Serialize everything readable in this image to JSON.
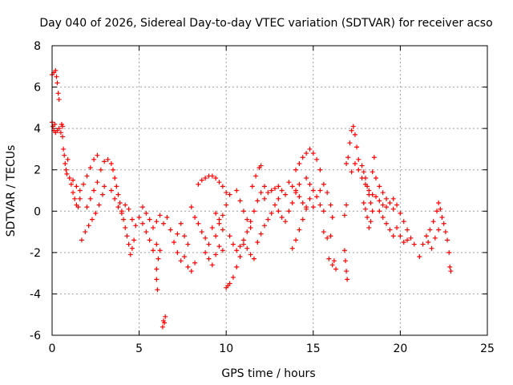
{
  "chart_data": {
    "type": "scatter",
    "title": "Day 040 of 2026, Sidereal Day-to-day VTEC variation (SDTVAR) for receiver acso",
    "xlabel": "GPS time / hours",
    "ylabel": "SDTVAR / TECUs",
    "xlim": [
      0,
      25
    ],
    "ylim": [
      -6,
      8
    ],
    "xticks": [
      0,
      5,
      10,
      15,
      20,
      25
    ],
    "yticks": [
      -6,
      -4,
      -2,
      0,
      2,
      4,
      6,
      8
    ],
    "grid": true,
    "marker": "+",
    "color": "#ff0000",
    "series": [
      {
        "name": "SDTVAR",
        "points": [
          [
            0.0,
            6.6
          ],
          [
            0.1,
            6.7
          ],
          [
            0.2,
            6.8
          ],
          [
            0.25,
            6.5
          ],
          [
            0.3,
            6.2
          ],
          [
            0.35,
            5.7
          ],
          [
            0.4,
            5.4
          ],
          [
            0.0,
            4.3
          ],
          [
            0.05,
            4.1
          ],
          [
            0.1,
            3.9
          ],
          [
            0.15,
            4.2
          ],
          [
            0.2,
            3.8
          ],
          [
            0.3,
            3.9
          ],
          [
            0.4,
            4.0
          ],
          [
            0.5,
            3.8
          ],
          [
            0.6,
            4.1
          ],
          [
            0.55,
            4.2
          ],
          [
            0.6,
            3.6
          ],
          [
            0.65,
            3.0
          ],
          [
            0.7,
            2.7
          ],
          [
            0.75,
            2.3
          ],
          [
            0.8,
            2.0
          ],
          [
            0.85,
            1.8
          ],
          [
            0.9,
            2.5
          ],
          [
            1.0,
            1.6
          ],
          [
            1.1,
            1.3
          ],
          [
            1.2,
            0.9
          ],
          [
            1.3,
            0.6
          ],
          [
            1.4,
            0.3
          ],
          [
            1.5,
            0.2
          ],
          [
            1.6,
            0.6
          ],
          [
            1.2,
            1.5
          ],
          [
            1.4,
            1.2
          ],
          [
            1.6,
            1.0
          ],
          [
            1.8,
            1.3
          ],
          [
            2.0,
            1.7
          ],
          [
            2.2,
            2.1
          ],
          [
            2.4,
            2.5
          ],
          [
            2.6,
            2.7
          ],
          [
            1.7,
            -1.4
          ],
          [
            1.9,
            -1.0
          ],
          [
            2.1,
            -0.7
          ],
          [
            2.3,
            -0.4
          ],
          [
            2.5,
            -0.1
          ],
          [
            2.7,
            0.3
          ],
          [
            2.9,
            0.8
          ],
          [
            3.0,
            1.2
          ],
          [
            2.0,
            0.2
          ],
          [
            2.2,
            0.6
          ],
          [
            2.4,
            1.0
          ],
          [
            2.6,
            1.4
          ],
          [
            2.8,
            2.0
          ],
          [
            3.0,
            2.4
          ],
          [
            3.2,
            2.5
          ],
          [
            3.4,
            2.3
          ],
          [
            3.5,
            2.0
          ],
          [
            3.6,
            1.6
          ],
          [
            3.7,
            1.2
          ],
          [
            3.8,
            0.8
          ],
          [
            3.9,
            0.4
          ],
          [
            4.0,
            0.0
          ],
          [
            4.1,
            -0.4
          ],
          [
            4.2,
            -0.8
          ],
          [
            4.3,
            -1.2
          ],
          [
            4.4,
            -1.6
          ],
          [
            4.5,
            -2.1
          ],
          [
            4.6,
            -1.8
          ],
          [
            4.7,
            -1.4
          ],
          [
            3.4,
            1.0
          ],
          [
            3.6,
            0.6
          ],
          [
            3.8,
            0.2
          ],
          [
            4.0,
            -0.1
          ],
          [
            4.2,
            0.3
          ],
          [
            4.4,
            0.1
          ],
          [
            4.6,
            -0.4
          ],
          [
            4.8,
            -0.7
          ],
          [
            5.0,
            -0.3
          ],
          [
            5.2,
            -0.6
          ],
          [
            5.4,
            -1.0
          ],
          [
            5.6,
            -1.4
          ],
          [
            5.8,
            -1.9
          ],
          [
            6.0,
            -1.6
          ],
          [
            5.2,
            0.2
          ],
          [
            5.4,
            -0.1
          ],
          [
            5.6,
            -0.4
          ],
          [
            5.8,
            -0.8
          ],
          [
            6.0,
            -0.5
          ],
          [
            6.2,
            -0.2
          ],
          [
            6.4,
            -0.6
          ],
          [
            6.0,
            -2.8
          ],
          [
            6.0,
            -3.3
          ],
          [
            6.05,
            -3.8
          ],
          [
            6.1,
            -2.3
          ],
          [
            6.2,
            -1.9
          ],
          [
            6.35,
            -5.6
          ],
          [
            6.4,
            -5.3
          ],
          [
            6.5,
            -5.1
          ],
          [
            6.45,
            -5.4
          ],
          [
            6.6,
            -0.3
          ],
          [
            6.8,
            -0.9
          ],
          [
            7.0,
            -1.5
          ],
          [
            7.2,
            -1.1
          ],
          [
            7.4,
            -0.6
          ],
          [
            7.6,
            -1.2
          ],
          [
            7.8,
            -1.6
          ],
          [
            7.2,
            -2.0
          ],
          [
            7.4,
            -2.4
          ],
          [
            7.6,
            -2.2
          ],
          [
            7.8,
            -2.7
          ],
          [
            8.0,
            -2.9
          ],
          [
            8.2,
            -2.5
          ],
          [
            8.0,
            0.2
          ],
          [
            8.2,
            -0.3
          ],
          [
            8.4,
            -0.6
          ],
          [
            8.6,
            -1.0
          ],
          [
            8.8,
            -1.3
          ],
          [
            9.0,
            -1.6
          ],
          [
            8.4,
            1.3
          ],
          [
            8.6,
            1.5
          ],
          [
            8.8,
            1.6
          ],
          [
            9.0,
            1.7
          ],
          [
            9.2,
            1.7
          ],
          [
            9.4,
            1.6
          ],
          [
            9.6,
            1.4
          ],
          [
            9.8,
            1.2
          ],
          [
            10.0,
            0.9
          ],
          [
            8.8,
            -2.0
          ],
          [
            9.0,
            -2.3
          ],
          [
            9.2,
            -2.6
          ],
          [
            9.4,
            -2.1
          ],
          [
            9.6,
            -1.7
          ],
          [
            9.8,
            -1.9
          ],
          [
            9.2,
            -0.8
          ],
          [
            9.4,
            -1.2
          ],
          [
            9.6,
            -0.6
          ],
          [
            9.8,
            -0.2
          ],
          [
            10.0,
            0.3
          ],
          [
            10.2,
            0.8
          ],
          [
            9.4,
            -0.1
          ],
          [
            9.6,
            -0.4
          ],
          [
            9.8,
            -0.9
          ],
          [
            10.0,
            -3.7
          ],
          [
            10.1,
            -3.6
          ],
          [
            10.2,
            -3.5
          ],
          [
            10.4,
            -3.2
          ],
          [
            10.6,
            -2.7
          ],
          [
            10.8,
            -2.2
          ],
          [
            11.0,
            -1.6
          ],
          [
            11.2,
            -1.0
          ],
          [
            11.4,
            -0.5
          ],
          [
            11.6,
            0.0
          ],
          [
            11.8,
            0.5
          ],
          [
            12.0,
            0.9
          ],
          [
            12.2,
            1.2
          ],
          [
            10.2,
            -1.2
          ],
          [
            10.4,
            -1.6
          ],
          [
            10.6,
            -1.9
          ],
          [
            10.8,
            -1.7
          ],
          [
            11.0,
            -1.4
          ],
          [
            11.2,
            -1.8
          ],
          [
            11.4,
            -2.1
          ],
          [
            11.6,
            -2.3
          ],
          [
            10.6,
            1.0
          ],
          [
            10.8,
            0.5
          ],
          [
            11.0,
            0.0
          ],
          [
            11.2,
            -0.4
          ],
          [
            11.4,
            -0.8
          ],
          [
            11.5,
            1.2
          ],
          [
            11.7,
            1.7
          ],
          [
            11.9,
            2.1
          ],
          [
            12.0,
            2.2
          ],
          [
            11.8,
            -1.5
          ],
          [
            12.0,
            -1.1
          ],
          [
            12.2,
            -0.7
          ],
          [
            12.4,
            -0.4
          ],
          [
            12.6,
            -0.1
          ],
          [
            12.8,
            0.3
          ],
          [
            13.0,
            0.6
          ],
          [
            12.2,
            0.6
          ],
          [
            12.4,
            0.9
          ],
          [
            12.6,
            1.0
          ],
          [
            12.8,
            1.1
          ],
          [
            13.0,
            1.2
          ],
          [
            13.2,
            1.0
          ],
          [
            13.4,
            0.8
          ],
          [
            13.0,
            0.0
          ],
          [
            13.2,
            -0.3
          ],
          [
            13.4,
            -0.5
          ],
          [
            13.6,
            0.0
          ],
          [
            13.8,
            0.4
          ],
          [
            14.0,
            0.9
          ],
          [
            14.2,
            1.3
          ],
          [
            13.6,
            1.4
          ],
          [
            13.8,
            1.2
          ],
          [
            14.0,
            1.0
          ],
          [
            14.2,
            0.7
          ],
          [
            14.4,
            0.4
          ],
          [
            14.6,
            0.2
          ],
          [
            13.8,
            -1.8
          ],
          [
            14.0,
            -1.4
          ],
          [
            14.2,
            -0.9
          ],
          [
            14.4,
            -0.4
          ],
          [
            14.6,
            0.1
          ],
          [
            14.8,
            0.6
          ],
          [
            15.0,
            0.2
          ],
          [
            14.0,
            2.0
          ],
          [
            14.2,
            2.3
          ],
          [
            14.4,
            2.6
          ],
          [
            14.6,
            2.8
          ],
          [
            14.8,
            3.0
          ],
          [
            15.0,
            2.8
          ],
          [
            15.2,
            2.5
          ],
          [
            15.4,
            2.0
          ],
          [
            14.6,
            1.6
          ],
          [
            14.8,
            1.3
          ],
          [
            15.0,
            1.0
          ],
          [
            15.2,
            0.7
          ],
          [
            15.4,
            0.3
          ],
          [
            15.6,
            0.0
          ],
          [
            15.4,
            1.0
          ],
          [
            15.6,
            1.3
          ],
          [
            15.8,
            0.9
          ],
          [
            16.0,
            0.3
          ],
          [
            16.1,
            -0.3
          ],
          [
            15.6,
            -1.0
          ],
          [
            15.8,
            -1.3
          ],
          [
            16.0,
            -1.2
          ],
          [
            15.9,
            -2.3
          ],
          [
            16.1,
            -2.6
          ],
          [
            16.2,
            -2.4
          ],
          [
            16.3,
            -2.8
          ],
          [
            16.9,
            2.3
          ],
          [
            17.0,
            2.6
          ],
          [
            17.1,
            3.3
          ],
          [
            17.2,
            3.9
          ],
          [
            17.3,
            4.1
          ],
          [
            17.4,
            3.7
          ],
          [
            17.5,
            3.1
          ],
          [
            17.6,
            2.5
          ],
          [
            17.2,
            1.9
          ],
          [
            17.4,
            2.3
          ],
          [
            17.6,
            2.0
          ],
          [
            17.8,
            1.6
          ],
          [
            16.8,
            -1.9
          ],
          [
            16.85,
            -2.4
          ],
          [
            16.9,
            -2.9
          ],
          [
            16.95,
            -3.3
          ],
          [
            16.8,
            -0.2
          ],
          [
            16.9,
            0.3
          ],
          [
            17.8,
            2.2
          ],
          [
            17.9,
            1.9
          ],
          [
            18.0,
            1.6
          ],
          [
            18.1,
            1.2
          ],
          [
            18.2,
            0.8
          ],
          [
            18.3,
            0.4
          ],
          [
            18.4,
            0.0
          ],
          [
            17.9,
            0.4
          ],
          [
            18.0,
            0.1
          ],
          [
            18.1,
            -0.3
          ],
          [
            18.2,
            -0.8
          ],
          [
            18.3,
            -0.5
          ],
          [
            18.0,
            1.3
          ],
          [
            18.2,
            1.0
          ],
          [
            18.4,
            0.8
          ],
          [
            18.6,
            0.7
          ],
          [
            18.8,
            0.5
          ],
          [
            19.0,
            0.3
          ],
          [
            19.2,
            0.2
          ],
          [
            18.4,
            1.9
          ],
          [
            18.6,
            1.6
          ],
          [
            18.8,
            1.2
          ],
          [
            19.0,
            0.9
          ],
          [
            19.2,
            0.6
          ],
          [
            19.4,
            0.4
          ],
          [
            19.6,
            0.1
          ],
          [
            18.5,
            2.6
          ],
          [
            18.8,
            0.0
          ],
          [
            19.0,
            -0.3
          ],
          [
            19.2,
            -0.6
          ],
          [
            19.4,
            -0.9
          ],
          [
            19.6,
            -1.2
          ],
          [
            19.6,
            0.6
          ],
          [
            19.8,
            0.3
          ],
          [
            20.0,
            -0.1
          ],
          [
            20.2,
            -0.5
          ],
          [
            20.4,
            -0.9
          ],
          [
            20.6,
            -1.3
          ],
          [
            20.8,
            -1.6
          ],
          [
            19.8,
            -0.8
          ],
          [
            20.0,
            -1.2
          ],
          [
            20.2,
            -1.5
          ],
          [
            20.4,
            -1.4
          ],
          [
            21.1,
            -2.2
          ],
          [
            21.3,
            -1.6
          ],
          [
            21.5,
            -1.2
          ],
          [
            21.7,
            -0.9
          ],
          [
            21.9,
            -0.5
          ],
          [
            22.1,
            0.0
          ],
          [
            22.2,
            0.4
          ],
          [
            21.6,
            -1.5
          ],
          [
            21.8,
            -1.8
          ],
          [
            22.0,
            -1.3
          ],
          [
            22.2,
            -0.9
          ],
          [
            22.3,
            0.1
          ],
          [
            22.4,
            -0.3
          ],
          [
            22.5,
            -0.6
          ],
          [
            22.6,
            -1.0
          ],
          [
            22.7,
            -1.4
          ],
          [
            22.8,
            -2.0
          ],
          [
            22.85,
            -2.7
          ],
          [
            22.9,
            -2.9
          ]
        ]
      }
    ]
  }
}
